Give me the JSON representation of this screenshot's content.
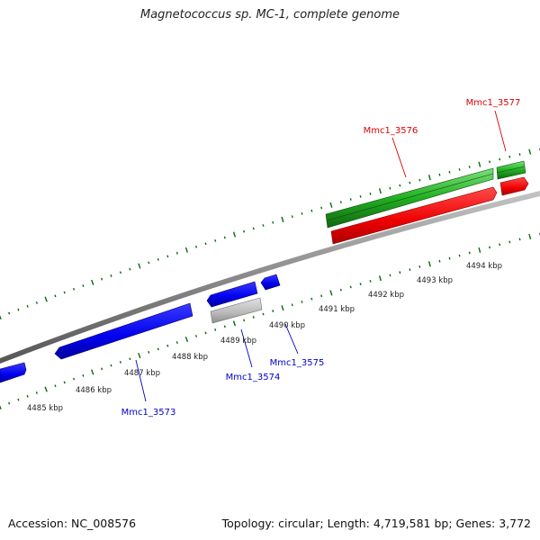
{
  "title": "Magnetococcus sp. MC-1, complete genome",
  "accession": "Accession: NC_008576",
  "summary": "Topology: circular; Length: 4,719,581 bp; Genes: 3,772",
  "colors": {
    "backbone": "#8a8a8a",
    "forward_gene": "#ff0000",
    "reverse_gene": "#0000ff",
    "forward_cds": "#22aa22",
    "pseudo": "#b4b4b4",
    "tick": "#0a6a0a"
  },
  "axis": {
    "unit": "kbp",
    "labels": [
      "4485 kbp",
      "4486 kbp",
      "4487 kbp",
      "4488 kbp",
      "4489 kbp",
      "4490 kbp",
      "4491 kbp",
      "4492 kbp",
      "4493 kbp",
      "4494 kbp"
    ]
  },
  "gene_labels": [
    {
      "text": "Mmc1_3573",
      "strand": "reverse"
    },
    {
      "text": "Mmc1_3574",
      "strand": "reverse"
    },
    {
      "text": "Mmc1_3575",
      "strand": "reverse"
    },
    {
      "text": "Mmc1_3576",
      "strand": "forward"
    },
    {
      "text": "Mmc1_3577",
      "strand": "forward"
    }
  ]
}
